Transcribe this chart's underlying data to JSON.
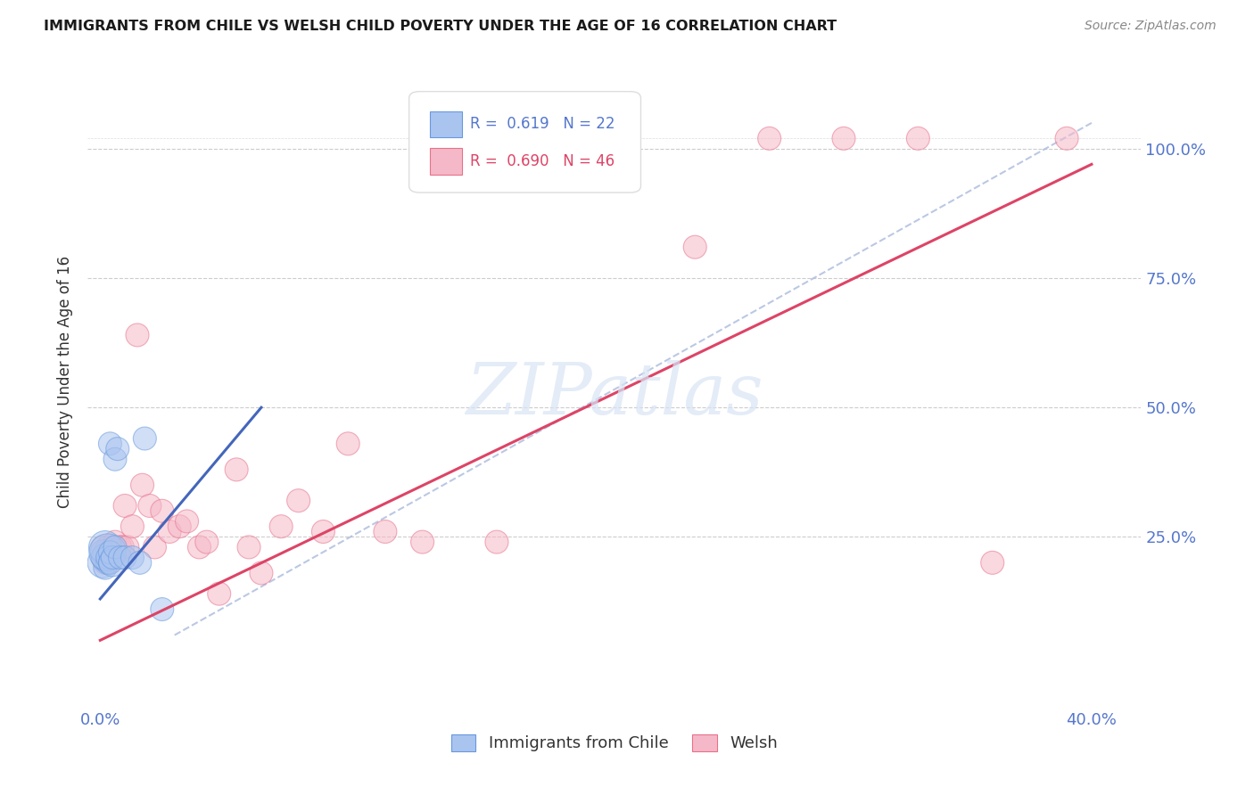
{
  "title": "IMMIGRANTS FROM CHILE VS WELSH CHILD POVERTY UNDER THE AGE OF 16 CORRELATION CHART",
  "source": "Source: ZipAtlas.com",
  "ylabel": "Child Poverty Under the Age of 16",
  "xlim": [
    -0.005,
    0.42
  ],
  "ylim": [
    -0.08,
    1.18
  ],
  "legend_blue_r": "0.619",
  "legend_blue_n": "22",
  "legend_pink_r": "0.690",
  "legend_pink_n": "46",
  "blue_fill": "#aac4f0",
  "pink_fill": "#f5b8c8",
  "blue_edge": "#6699dd",
  "pink_edge": "#e8708a",
  "blue_line_color": "#4466bb",
  "pink_line_color": "#dd4466",
  "watermark": "ZIPatlas",
  "blue_scatter_x": [
    0.001,
    0.001,
    0.002,
    0.002,
    0.002,
    0.003,
    0.003,
    0.003,
    0.004,
    0.004,
    0.004,
    0.005,
    0.005,
    0.006,
    0.006,
    0.007,
    0.008,
    0.01,
    0.013,
    0.016,
    0.018,
    0.025
  ],
  "blue_scatter_y": [
    0.2,
    0.22,
    0.19,
    0.21,
    0.23,
    0.2,
    0.22,
    0.21,
    0.2,
    0.43,
    0.22,
    0.2,
    0.21,
    0.4,
    0.23,
    0.42,
    0.21,
    0.21,
    0.21,
    0.2,
    0.44,
    0.11
  ],
  "blue_scatter_sizes": [
    600,
    400,
    350,
    500,
    700,
    350,
    900,
    350,
    350,
    350,
    350,
    500,
    350,
    350,
    350,
    350,
    350,
    350,
    350,
    350,
    350,
    350
  ],
  "pink_scatter_x": [
    0.001,
    0.001,
    0.002,
    0.002,
    0.003,
    0.003,
    0.004,
    0.004,
    0.005,
    0.005,
    0.006,
    0.006,
    0.007,
    0.008,
    0.009,
    0.01,
    0.011,
    0.013,
    0.015,
    0.017,
    0.02,
    0.022,
    0.025,
    0.028,
    0.032,
    0.035,
    0.04,
    0.043,
    0.048,
    0.055,
    0.06,
    0.065,
    0.073,
    0.08,
    0.09,
    0.1,
    0.115,
    0.13,
    0.16,
    0.2,
    0.24,
    0.27,
    0.3,
    0.33,
    0.36,
    0.39
  ],
  "pink_scatter_y": [
    0.21,
    0.23,
    0.2,
    0.22,
    0.21,
    0.23,
    0.2,
    0.22,
    0.21,
    0.23,
    0.22,
    0.24,
    0.22,
    0.23,
    0.23,
    0.31,
    0.23,
    0.27,
    0.64,
    0.35,
    0.31,
    0.23,
    0.3,
    0.26,
    0.27,
    0.28,
    0.23,
    0.24,
    0.14,
    0.38,
    0.23,
    0.18,
    0.27,
    0.32,
    0.26,
    0.43,
    0.26,
    0.24,
    0.24,
    1.02,
    0.81,
    1.02,
    1.02,
    1.02,
    0.2,
    1.02
  ],
  "pink_scatter_sizes": [
    350,
    350,
    350,
    350,
    350,
    350,
    350,
    350,
    350,
    350,
    350,
    350,
    350,
    350,
    350,
    350,
    350,
    350,
    350,
    350,
    350,
    350,
    350,
    350,
    350,
    350,
    350,
    350,
    350,
    350,
    350,
    350,
    350,
    350,
    350,
    350,
    350,
    350,
    350,
    350,
    350,
    350,
    350,
    350,
    350,
    350
  ],
  "blue_line_x": [
    0.0,
    0.065
  ],
  "blue_line_y": [
    0.13,
    0.5
  ],
  "pink_line_x": [
    0.0,
    0.4
  ],
  "pink_line_y": [
    0.05,
    0.97
  ],
  "diag_line_x": [
    0.03,
    0.4
  ],
  "diag_line_y": [
    0.06,
    1.05
  ]
}
